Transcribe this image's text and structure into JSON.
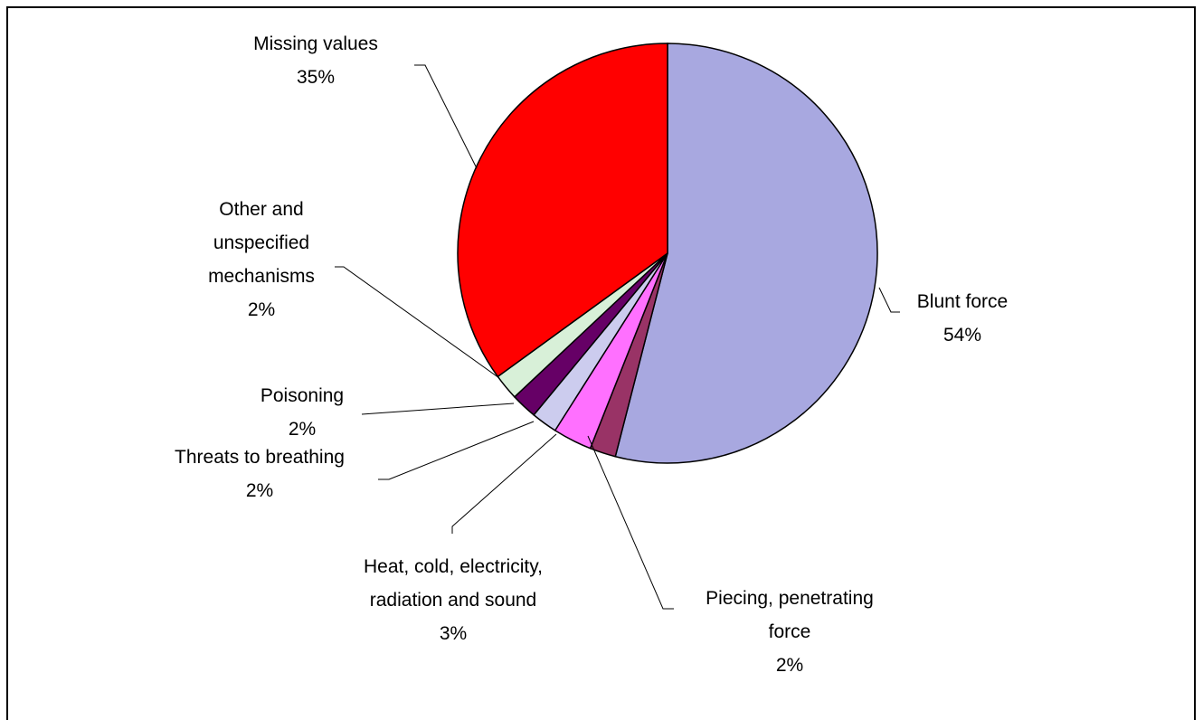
{
  "chart_data": {
    "type": "pie",
    "categories": [
      "Blunt force",
      "Piecing, penetrating force",
      "Heat, cold, electricity, radiation and sound",
      "Threats to breathing",
      "Poisoning",
      "Other and unspecified mechanisms",
      "Missing values"
    ],
    "values": [
      54,
      2,
      3,
      2,
      2,
      2,
      35
    ],
    "value_labels": [
      "54%",
      "2%",
      "3%",
      "2%",
      "2%",
      "2%",
      "35%"
    ],
    "colors": [
      "#a8a8e0",
      "#993366",
      "#ff70ff",
      "#ccccee",
      "#660066",
      "#d8f0d8",
      "#ff0000"
    ]
  }
}
